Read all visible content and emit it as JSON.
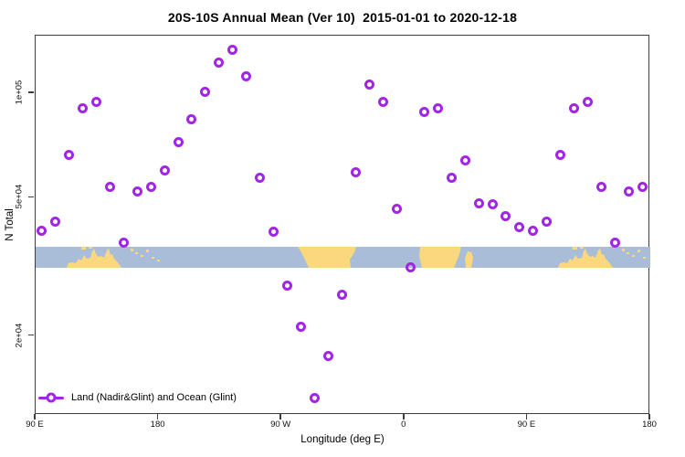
{
  "title": "20S-10S Annual Mean (Ver 10)  2015-01-01 to 2020-12-18",
  "legend": {
    "label": "Land (Nadir&Glint) and Ocean (Glint)",
    "marker": "open-circle-on-line",
    "color": "#A124E8"
  },
  "chart_data": {
    "type": "scatter",
    "title": "20S-10S Annual Mean (Ver 10)  2015-01-01 to 2020-12-18",
    "xlabel": "Longitude (deg E)",
    "ylabel": "N Total",
    "y_scale": "log",
    "grid": "off",
    "legend_position": "bottom-left-inside",
    "x_axis": {
      "min": 90,
      "max": 540,
      "note": "longitude axis wraps: 90E..180..90W..0..90E..180",
      "ticks": [
        {
          "value": 90,
          "label": "90 E"
        },
        {
          "value": 180,
          "label": "180"
        },
        {
          "value": 270,
          "label": "90 W"
        },
        {
          "value": 360,
          "label": "0"
        },
        {
          "value": 450,
          "label": "90 E"
        },
        {
          "value": 540,
          "label": "180"
        }
      ]
    },
    "y_axis": {
      "ticks": [
        {
          "value": 100000,
          "label": "1e+05"
        },
        {
          "value": 50000,
          "label": "5e+04"
        },
        {
          "value": 20000,
          "label": "2e+04"
        }
      ]
    },
    "map_band": {
      "description": "world coastline strip for latitude band 20S-10S drawn across mid-plot",
      "ocean_color": "#A9BDD8",
      "land_color": "#FBD77E",
      "value_range_approx": [
        32000,
        37000
      ]
    },
    "series": [
      {
        "name": "Land (Nadir&Glint) and Ocean (Glint)",
        "color": "#A124E8",
        "marker": "open-circle",
        "points": [
          {
            "lon": 95,
            "n": 40000
          },
          {
            "lon": 105,
            "n": 42300
          },
          {
            "lon": 115,
            "n": 66200
          },
          {
            "lon": 125,
            "n": 89700
          },
          {
            "lon": 135,
            "n": 94100
          },
          {
            "lon": 145,
            "n": 53300
          },
          {
            "lon": 155,
            "n": 37000
          },
          {
            "lon": 165,
            "n": 51700
          },
          {
            "lon": 175,
            "n": 53300
          },
          {
            "lon": 185,
            "n": 59400
          },
          {
            "lon": 195,
            "n": 71700
          },
          {
            "lon": 205,
            "n": 83400
          },
          {
            "lon": 215,
            "n": 100600
          },
          {
            "lon": 225,
            "n": 121400
          },
          {
            "lon": 235,
            "n": 132900
          },
          {
            "lon": 245,
            "n": 111500
          },
          {
            "lon": 255,
            "n": 56600
          },
          {
            "lon": 265,
            "n": 39800
          },
          {
            "lon": 275,
            "n": 27700
          },
          {
            "lon": 285,
            "n": 21100
          },
          {
            "lon": 295,
            "n": 13200
          },
          {
            "lon": 305,
            "n": 17400
          },
          {
            "lon": 315,
            "n": 26100
          },
          {
            "lon": 325,
            "n": 59000
          },
          {
            "lon": 335,
            "n": 105600
          },
          {
            "lon": 345,
            "n": 93600
          },
          {
            "lon": 355,
            "n": 46100
          },
          {
            "lon": 365,
            "n": 31400
          },
          {
            "lon": 375,
            "n": 88000
          },
          {
            "lon": 385,
            "n": 89700
          },
          {
            "lon": 395,
            "n": 56900
          },
          {
            "lon": 405,
            "n": 63500
          },
          {
            "lon": 415,
            "n": 48000
          },
          {
            "lon": 425,
            "n": 47500
          },
          {
            "lon": 435,
            "n": 43900
          },
          {
            "lon": 445,
            "n": 40800
          },
          {
            "lon": 455,
            "n": 40000
          },
          {
            "lon": 465,
            "n": 42300
          },
          {
            "lon": 475,
            "n": 66200
          },
          {
            "lon": 485,
            "n": 89700
          },
          {
            "lon": 495,
            "n": 94100
          },
          {
            "lon": 505,
            "n": 53300
          },
          {
            "lon": 515,
            "n": 37000
          },
          {
            "lon": 525,
            "n": 51700
          },
          {
            "lon": 535,
            "n": 53300
          }
        ]
      }
    ]
  }
}
